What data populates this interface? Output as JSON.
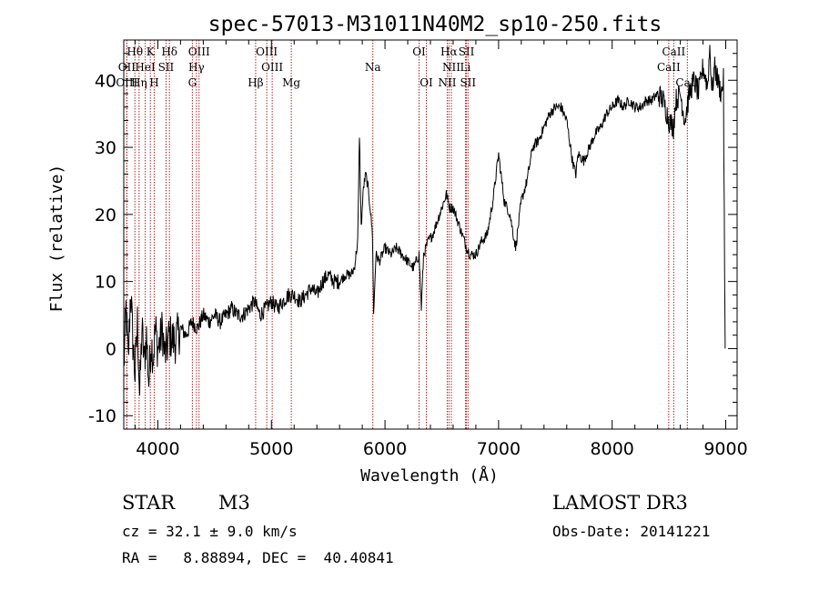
{
  "chart_data": {
    "type": "line",
    "title": "spec-57013-M31011N40M2_sp10-250.fits",
    "xlabel": "Wavelength (Å)",
    "ylabel": "Flux (relative)",
    "xlim": [
      3700,
      9100
    ],
    "ylim": [
      -12,
      46
    ],
    "xticks": [
      4000,
      5000,
      6000,
      7000,
      8000,
      9000
    ],
    "yticks": [
      -10,
      0,
      10,
      20,
      30,
      40
    ],
    "colors": {
      "spectrum": "#000000",
      "lines": "#b22222"
    },
    "spectrum_points": [
      [
        3700,
        -3
      ],
      [
        3720,
        6
      ],
      [
        3740,
        -2
      ],
      [
        3760,
        9
      ],
      [
        3780,
        1
      ],
      [
        3800,
        -4
      ],
      [
        3820,
        4
      ],
      [
        3840,
        -7
      ],
      [
        3860,
        3
      ],
      [
        3880,
        -2
      ],
      [
        3900,
        2
      ],
      [
        3920,
        -5
      ],
      [
        3940,
        1
      ],
      [
        3960,
        -1
      ],
      [
        3980,
        3
      ],
      [
        4000,
        0
      ],
      [
        4020,
        1
      ],
      [
        4040,
        3
      ],
      [
        4060,
        -1
      ],
      [
        4080,
        0
      ],
      [
        4100,
        2
      ],
      [
        4150,
        1
      ],
      [
        4200,
        3
      ],
      [
        4250,
        2
      ],
      [
        4300,
        4
      ],
      [
        4350,
        3
      ],
      [
        4400,
        5
      ],
      [
        4450,
        4
      ],
      [
        4500,
        5
      ],
      [
        4550,
        4
      ],
      [
        4600,
        5
      ],
      [
        4650,
        6
      ],
      [
        4700,
        5
      ],
      [
        4750,
        5
      ],
      [
        4800,
        6
      ],
      [
        4850,
        7
      ],
      [
        4900,
        5
      ],
      [
        4950,
        6
      ],
      [
        5000,
        7
      ],
      [
        5050,
        6
      ],
      [
        5100,
        7
      ],
      [
        5150,
        8
      ],
      [
        5200,
        8
      ],
      [
        5250,
        7
      ],
      [
        5300,
        8
      ],
      [
        5350,
        9
      ],
      [
        5400,
        8
      ],
      [
        5450,
        10
      ],
      [
        5500,
        11
      ],
      [
        5550,
        10
      ],
      [
        5600,
        10
      ],
      [
        5650,
        11
      ],
      [
        5700,
        11
      ],
      [
        5730,
        12
      ],
      [
        5760,
        16
      ],
      [
        5775,
        32
      ],
      [
        5790,
        18
      ],
      [
        5810,
        24
      ],
      [
        5830,
        26
      ],
      [
        5850,
        24
      ],
      [
        5870,
        21
      ],
      [
        5890,
        17
      ],
      [
        5900,
        5
      ],
      [
        5920,
        14
      ],
      [
        5950,
        13
      ],
      [
        6000,
        15
      ],
      [
        6050,
        14
      ],
      [
        6100,
        15
      ],
      [
        6150,
        14
      ],
      [
        6200,
        13
      ],
      [
        6250,
        12
      ],
      [
        6300,
        14
      ],
      [
        6320,
        6
      ],
      [
        6340,
        14
      ],
      [
        6380,
        16
      ],
      [
        6420,
        17
      ],
      [
        6460,
        19
      ],
      [
        6500,
        21
      ],
      [
        6540,
        23
      ],
      [
        6570,
        21
      ],
      [
        6600,
        21
      ],
      [
        6640,
        19
      ],
      [
        6680,
        17
      ],
      [
        6720,
        15
      ],
      [
        6750,
        14
      ],
      [
        6800,
        14
      ],
      [
        6850,
        16
      ],
      [
        6900,
        17
      ],
      [
        6950,
        22
      ],
      [
        7000,
        29
      ],
      [
        7050,
        22
      ],
      [
        7100,
        20
      ],
      [
        7150,
        15
      ],
      [
        7200,
        22
      ],
      [
        7250,
        25
      ],
      [
        7300,
        30
      ],
      [
        7350,
        31
      ],
      [
        7400,
        33
      ],
      [
        7450,
        35
      ],
      [
        7500,
        36
      ],
      [
        7550,
        36
      ],
      [
        7600,
        34
      ],
      [
        7650,
        28
      ],
      [
        7680,
        26
      ],
      [
        7700,
        29
      ],
      [
        7750,
        28
      ],
      [
        7800,
        30
      ],
      [
        7850,
        32
      ],
      [
        7900,
        33
      ],
      [
        7950,
        35
      ],
      [
        8000,
        36
      ],
      [
        8050,
        37
      ],
      [
        8100,
        36
      ],
      [
        8150,
        37
      ],
      [
        8200,
        36
      ],
      [
        8250,
        36
      ],
      [
        8300,
        37
      ],
      [
        8350,
        37
      ],
      [
        8400,
        38
      ],
      [
        8450,
        37
      ],
      [
        8500,
        34
      ],
      [
        8540,
        33
      ],
      [
        8560,
        37
      ],
      [
        8600,
        38
      ],
      [
        8640,
        34
      ],
      [
        8680,
        38
      ],
      [
        8720,
        40
      ],
      [
        8760,
        38
      ],
      [
        8800,
        42
      ],
      [
        8840,
        39
      ],
      [
        8860,
        45
      ],
      [
        8880,
        38
      ],
      [
        8900,
        42
      ],
      [
        8930,
        40
      ],
      [
        8960,
        38
      ],
      [
        8980,
        40
      ],
      [
        8990,
        10
      ],
      [
        8995,
        0
      ]
    ],
    "spectral_lines": [
      {
        "label": "Hθ",
        "wavelength": 3798,
        "row": 1
      },
      {
        "label": "K",
        "wavelength": 3934,
        "row": 1
      },
      {
        "label": "Hδ",
        "wavelength": 4102,
        "row": 1
      },
      {
        "label": "OIII",
        "wavelength": 4363,
        "row": 1
      },
      {
        "label": "OIII",
        "wavelength": 4959,
        "row": 1
      },
      {
        "label": "OI",
        "wavelength": 6300,
        "row": 1
      },
      {
        "label": "Hα",
        "wavelength": 6563,
        "row": 1
      },
      {
        "label": "SII",
        "wavelength": 6717,
        "row": 1
      },
      {
        "label": "CaII",
        "wavelength": 8542,
        "row": 1
      },
      {
        "label": "OII",
        "wavelength": 3727,
        "row": 2
      },
      {
        "label": "HeI",
        "wavelength": 3889,
        "row": 2
      },
      {
        "label": "SII",
        "wavelength": 4072,
        "row": 2
      },
      {
        "label": "Hγ",
        "wavelength": 4340,
        "row": 2
      },
      {
        "label": "OIII",
        "wavelength": 5007,
        "row": 2
      },
      {
        "label": "Na",
        "wavelength": 5893,
        "row": 2
      },
      {
        "label": "NII",
        "wavelength": 6584,
        "row": 2
      },
      {
        "label": "Li",
        "wavelength": 6708,
        "row": 2
      },
      {
        "label": "CaII",
        "wavelength": 8498,
        "row": 2
      },
      {
        "label": "OIII",
        "wavelength": 3727,
        "row": 3
      },
      {
        "label": "Hη",
        "wavelength": 3835,
        "row": 3
      },
      {
        "label": "H",
        "wavelength": 3968,
        "row": 3
      },
      {
        "label": "G",
        "wavelength": 4304,
        "row": 3
      },
      {
        "label": "Hβ",
        "wavelength": 4861,
        "row": 3
      },
      {
        "label": "Mg",
        "wavelength": 5175,
        "row": 3
      },
      {
        "label": "OI",
        "wavelength": 6364,
        "row": 3
      },
      {
        "label": "NII",
        "wavelength": 6548,
        "row": 3
      },
      {
        "label": "SII",
        "wavelength": 6731,
        "row": 3
      },
      {
        "label": "CaII",
        "wavelength": 8662,
        "row": 3
      }
    ]
  },
  "info": {
    "class": "STAR",
    "subclass": "M3",
    "survey": "LAMOST DR3",
    "cz": "cz = 32.1 ± 9.0 km/s",
    "obs_date": "Obs-Date: 20141221",
    "coords": "RA =   8.88894, DEC =  40.40841"
  }
}
